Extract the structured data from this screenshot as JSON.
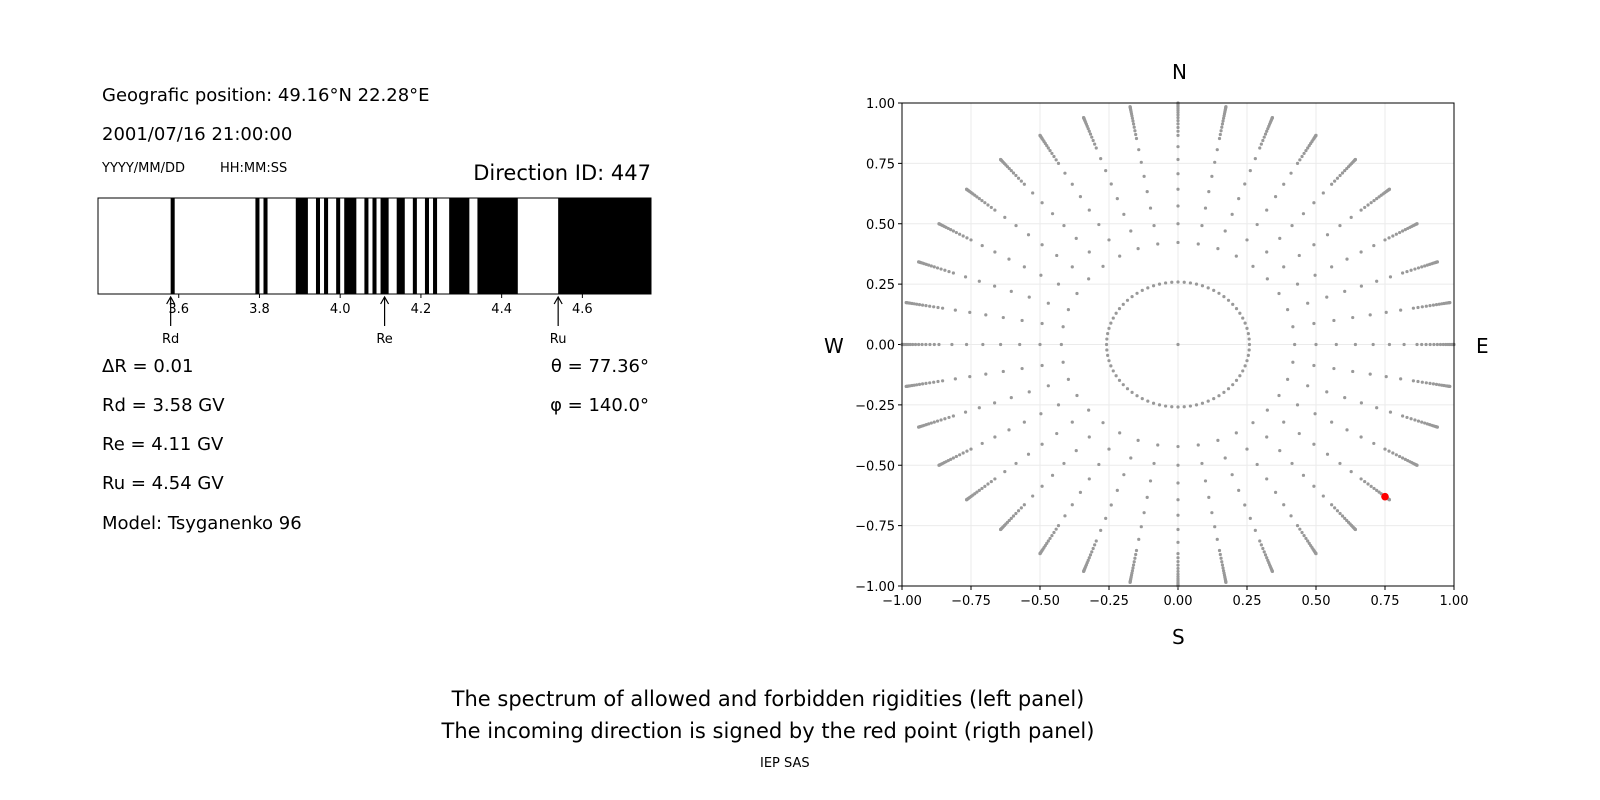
{
  "left_panel": {
    "geo_position": "Geografic position: 49.16°N 22.28°E",
    "datetime": "2001/07/16 21:00:00",
    "date_format": "YYYY/MM/DD",
    "time_format": "HH:MM:SS",
    "direction_id": "Direction ID: 447",
    "delta_r": "ΔR = 0.01",
    "rd": "Rd = 3.58 GV",
    "re": "Re = 4.11 GV",
    "ru": "Ru = 4.54 GV",
    "model": "Model: Tsyganenko 96",
    "theta": "θ = 77.36°",
    "phi": "φ = 140.0°"
  },
  "compass": {
    "north": "N",
    "south": "S",
    "west": "W",
    "east": "E"
  },
  "caption": {
    "line1": "The spectrum of allowed and forbidden rigidities (left panel)",
    "line2": "The incoming direction is signed by the red point (rigth panel)",
    "credit": "IEP SAS"
  },
  "chart_data": [
    {
      "type": "bar",
      "xlim": [
        3.4,
        4.77
      ],
      "xticks": [
        "3.6",
        "3.8",
        "4.0",
        "4.2",
        "4.4",
        "4.6"
      ],
      "black_intervals": [
        [
          3.58,
          3.59
        ],
        [
          3.79,
          3.8
        ],
        [
          3.81,
          3.82
        ],
        [
          3.89,
          3.92
        ],
        [
          3.94,
          3.95
        ],
        [
          3.96,
          3.97
        ],
        [
          3.99,
          4.0
        ],
        [
          4.01,
          4.04
        ],
        [
          4.06,
          4.07
        ],
        [
          4.08,
          4.09
        ],
        [
          4.1,
          4.12
        ],
        [
          4.14,
          4.16
        ],
        [
          4.18,
          4.19
        ],
        [
          4.21,
          4.22
        ],
        [
          4.23,
          4.24
        ],
        [
          4.27,
          4.32
        ],
        [
          4.34,
          4.44
        ],
        [
          4.54,
          4.77
        ]
      ],
      "annotations": [
        {
          "label": "Rd",
          "x": 3.58
        },
        {
          "label": "Re",
          "x": 4.11
        },
        {
          "label": "Ru",
          "x": 4.54
        }
      ],
      "colors": {
        "forbidden": "#000000",
        "allowed": "#ffffff"
      }
    },
    {
      "type": "scatter",
      "xlim": [
        -1,
        1
      ],
      "ylim": [
        -1,
        1
      ],
      "xticks": [
        "−1.00",
        "−0.75",
        "−0.50",
        "−0.25",
        "0.00",
        "0.25",
        "0.50",
        "0.75",
        "1.00"
      ],
      "yticks": [
        "−1.00",
        "−0.75",
        "−0.50",
        "−0.25",
        "0.00",
        "0.25",
        "0.50",
        "0.75",
        "1.00"
      ],
      "grid": true,
      "grid_points": {
        "zenith_deg_ring": 15,
        "zenith_deg_spokes": [
          25,
          30,
          35,
          40,
          45,
          50,
          55,
          60,
          62,
          64,
          66,
          68,
          70,
          72,
          74,
          76,
          78,
          80,
          82,
          84,
          86,
          88,
          90
        ],
        "azimuth_step_deg": 10,
        "color": "#999999"
      },
      "highlight_point": {
        "x": 0.75,
        "y": -0.63,
        "color": "#ff0000"
      }
    }
  ]
}
